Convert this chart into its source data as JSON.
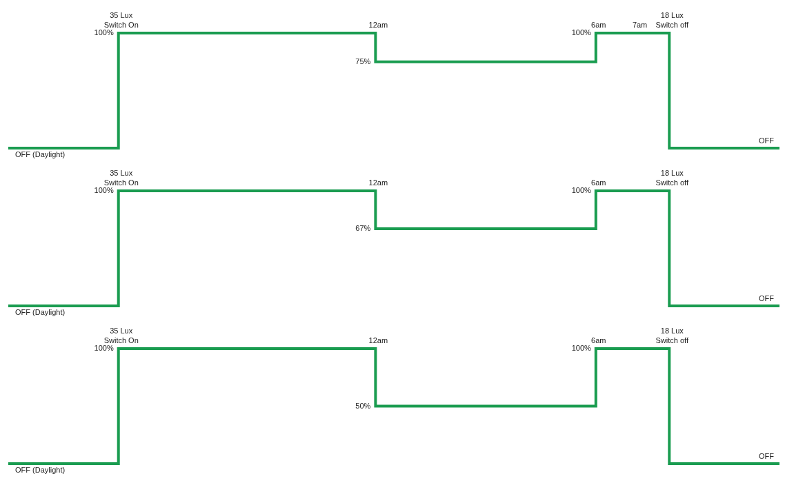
{
  "chart_data": [
    {
      "type": "step",
      "categories": [
        null,
        null,
        null,
        null,
        null,
        null,
        null,
        null,
        null,
        null,
        null,
        null,
        null,
        null,
        null,
        null,
        null,
        null,
        null,
        null,
        null,
        null
      ],
      "color": "#1a9c50",
      "legend": false,
      "values": [
        0,
        0,
        0,
        100,
        100,
        100,
        100,
        100,
        100,
        100,
        75,
        75,
        75,
        75,
        75,
        75,
        100,
        100,
        0,
        0,
        0,
        0
      ],
      "value_labels": [
        "OFF (Daylight)",
        null,
        null,
        "100%",
        null,
        null,
        null,
        null,
        null,
        null,
        "75%",
        null,
        null,
        null,
        null,
        null,
        "100%",
        null,
        null,
        null,
        null,
        "OFF"
      ],
      "annotations": [
        "35 Lux\nSwitch On",
        "12am",
        "6am",
        "18 Lux\nSwitch off",
        "7am"
      ]
    },
    {
      "type": "step",
      "categories": [
        null,
        null,
        null,
        null,
        null,
        null,
        null,
        null,
        null,
        null,
        null,
        null,
        null,
        null,
        null,
        null,
        null,
        null,
        null,
        null,
        null,
        null
      ],
      "color": "#1a9c50",
      "legend": false,
      "values": [
        0,
        0,
        0,
        100,
        100,
        100,
        100,
        100,
        100,
        100,
        67,
        67,
        67,
        67,
        67,
        67,
        100,
        100,
        0,
        0,
        0,
        0
      ],
      "value_labels": [
        "OFF (Daylight)",
        null,
        null,
        "100%",
        null,
        null,
        null,
        null,
        null,
        null,
        "67%",
        null,
        null,
        null,
        null,
        null,
        "100%",
        null,
        null,
        null,
        null,
        "OFF"
      ],
      "annotations": [
        "35 Lux\nSwitch On",
        "12am",
        "6am",
        "18 Lux\nSwitch off"
      ]
    },
    {
      "type": "step",
      "categories": [
        null,
        null,
        null,
        null,
        null,
        null,
        null,
        null,
        null,
        null,
        null,
        null,
        null,
        null,
        null,
        null,
        null,
        null,
        null,
        null,
        null,
        null
      ],
      "color": "#1a9c50",
      "legend": false,
      "values": [
        0,
        0,
        0,
        100,
        100,
        100,
        100,
        100,
        100,
        100,
        50,
        50,
        50,
        50,
        50,
        50,
        100,
        100,
        0,
        0,
        0,
        0
      ],
      "value_labels": [
        "OFF (Daylight)",
        null,
        null,
        "100%",
        null,
        null,
        null,
        null,
        null,
        null,
        "50%",
        null,
        null,
        null,
        null,
        null,
        "100%",
        null,
        null,
        null,
        null,
        "OFF"
      ],
      "annotations": [
        "35 Lux\nSwitch On",
        "12am",
        "6am",
        "18 Lux\nSwitch off"
      ]
    }
  ]
}
